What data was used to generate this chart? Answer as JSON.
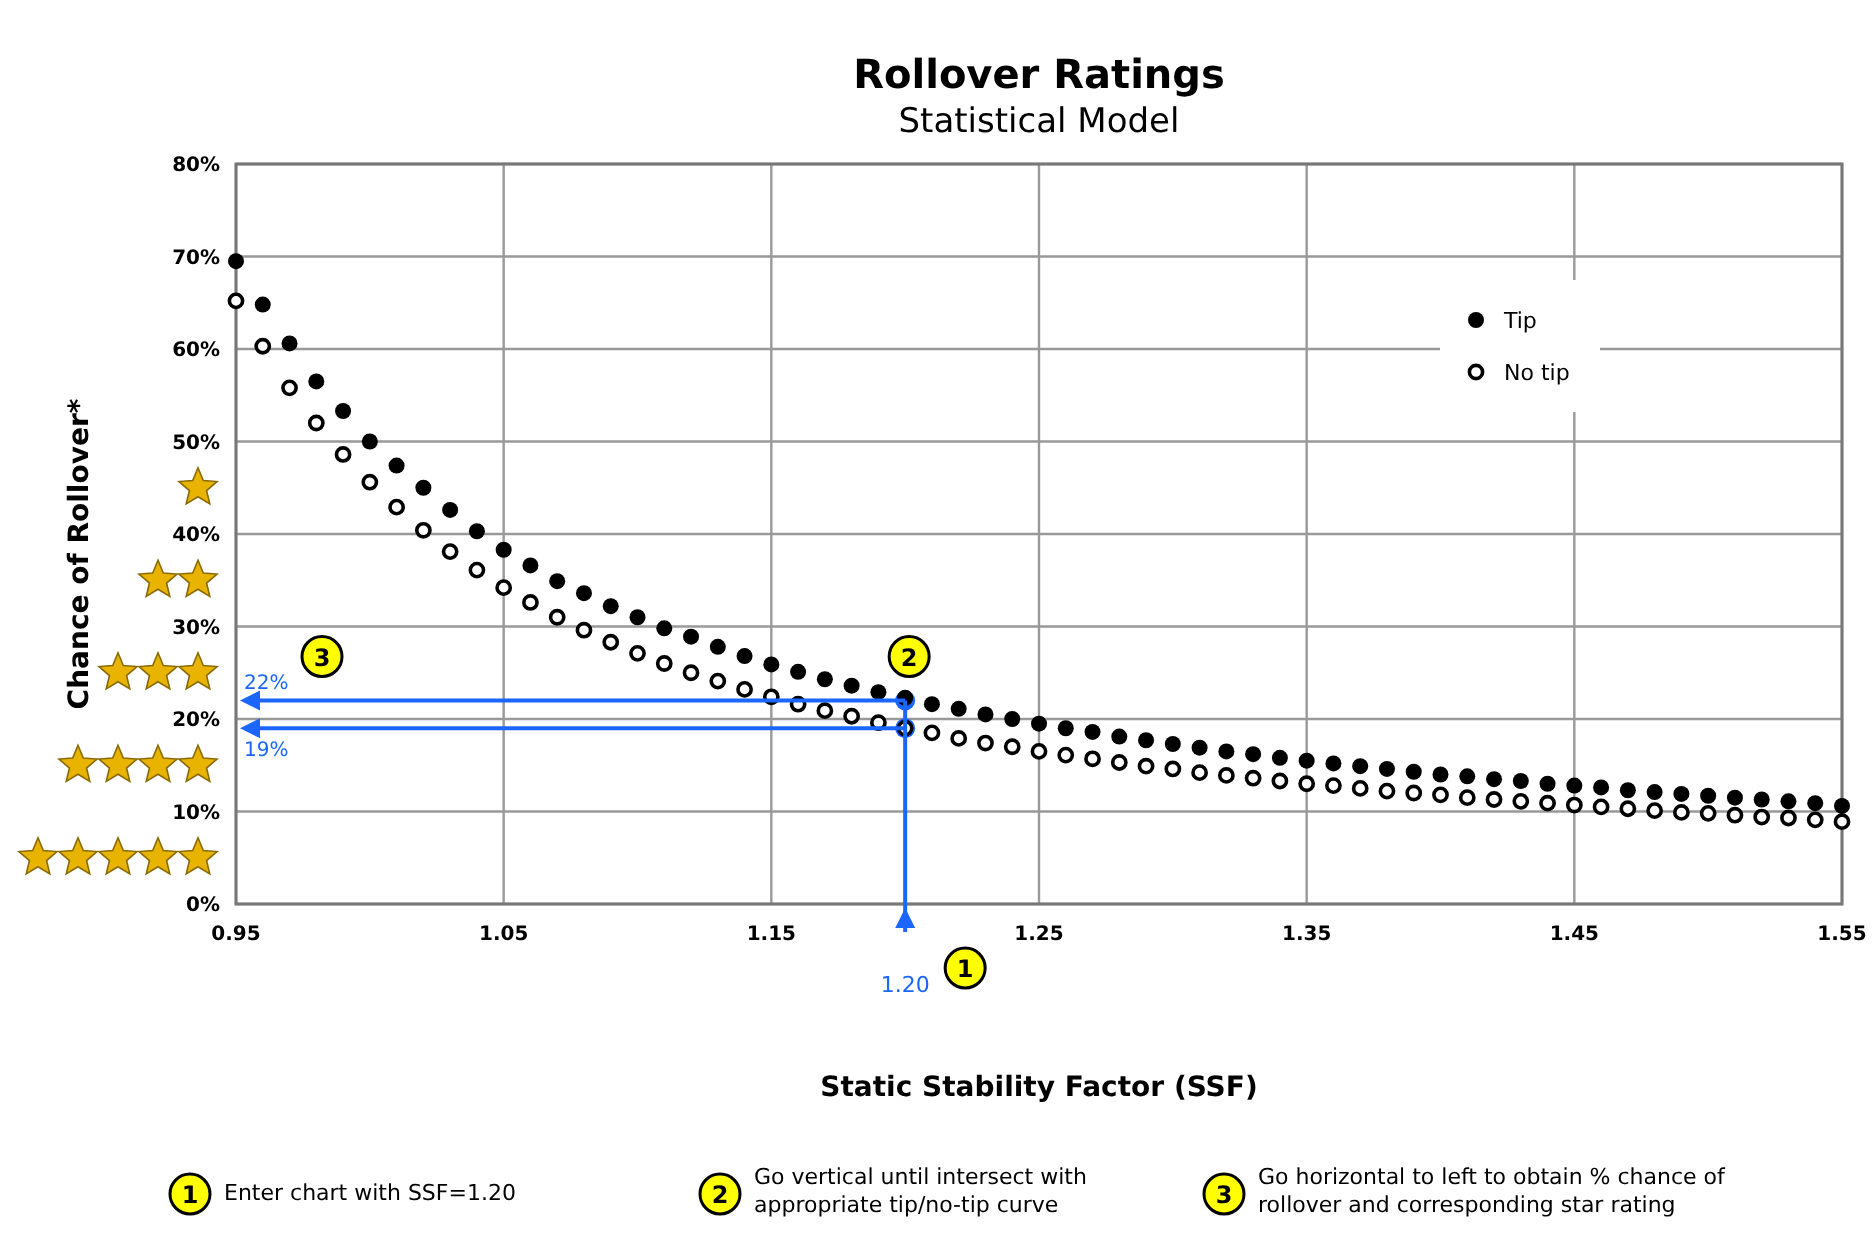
{
  "chart_data": {
    "type": "scatter",
    "title": "Rollover Ratings",
    "subtitle": "Statistical Model",
    "xlabel": "Static Stability Factor (SSF)",
    "ylabel": "Chance of Rollover*",
    "x": [
      0.95,
      0.96,
      0.97,
      0.98,
      0.99,
      1.0,
      1.01,
      1.02,
      1.03,
      1.04,
      1.05,
      1.06,
      1.07,
      1.08,
      1.09,
      1.1,
      1.11,
      1.12,
      1.13,
      1.14,
      1.15,
      1.16,
      1.17,
      1.18,
      1.19,
      1.2,
      1.21,
      1.22,
      1.23,
      1.24,
      1.25,
      1.26,
      1.27,
      1.28,
      1.29,
      1.3,
      1.31,
      1.32,
      1.33,
      1.34,
      1.35,
      1.36,
      1.37,
      1.38,
      1.39,
      1.4,
      1.41,
      1.42,
      1.43,
      1.44,
      1.45,
      1.46,
      1.47,
      1.48,
      1.49,
      1.5,
      1.51,
      1.52,
      1.53,
      1.54,
      1.55
    ],
    "series": [
      {
        "name": "Tip",
        "color": "#000000",
        "values": [
          69.5,
          64.8,
          60.6,
          56.5,
          53.3,
          50.0,
          47.4,
          45.0,
          42.6,
          40.3,
          38.3,
          36.6,
          34.9,
          33.6,
          32.2,
          31.0,
          29.8,
          28.9,
          27.8,
          26.8,
          25.9,
          25.1,
          24.3,
          23.6,
          22.9,
          22.3,
          21.6,
          21.1,
          20.5,
          20.0,
          19.5,
          19.0,
          18.6,
          18.1,
          17.7,
          17.3,
          16.9,
          16.5,
          16.2,
          15.8,
          15.5,
          15.2,
          14.9,
          14.6,
          14.3,
          14.0,
          13.8,
          13.5,
          13.3,
          13.0,
          12.8,
          12.6,
          12.3,
          12.1,
          11.9,
          11.7,
          11.5,
          11.3,
          11.1,
          10.9,
          10.6
        ]
      },
      {
        "name": "No tip",
        "color": "#000000",
        "values": [
          65.2,
          60.3,
          55.8,
          52.0,
          48.6,
          45.6,
          42.9,
          40.4,
          38.1,
          36.1,
          34.2,
          32.6,
          31.0,
          29.6,
          28.3,
          27.1,
          26.0,
          25.0,
          24.1,
          23.2,
          22.4,
          21.6,
          20.9,
          20.3,
          19.6,
          19.0,
          18.5,
          17.9,
          17.4,
          17.0,
          16.5,
          16.1,
          15.7,
          15.3,
          14.9,
          14.6,
          14.2,
          13.9,
          13.6,
          13.3,
          13.0,
          12.8,
          12.5,
          12.2,
          12.0,
          11.8,
          11.5,
          11.3,
          11.1,
          10.9,
          10.7,
          10.5,
          10.3,
          10.1,
          9.9,
          9.8,
          9.6,
          9.4,
          9.3,
          9.1,
          8.9
        ]
      }
    ],
    "xlim": [
      0.95,
      1.55
    ],
    "xticks": [
      {
        "value": 0.95,
        "label": "0.95"
      },
      {
        "value": 1.05,
        "label": "1.05"
      },
      {
        "value": 1.15,
        "label": "1.15"
      },
      {
        "value": 1.25,
        "label": "1.25"
      },
      {
        "value": 1.35,
        "label": "1.35"
      },
      {
        "value": 1.45,
        "label": "1.45"
      },
      {
        "value": 1.55,
        "label": "1.55"
      }
    ],
    "ylim": [
      0,
      80
    ],
    "yticks": [
      {
        "value": 0,
        "label": "0%"
      },
      {
        "value": 10,
        "label": "10%"
      },
      {
        "value": 20,
        "label": "20%"
      },
      {
        "value": 30,
        "label": "30%"
      },
      {
        "value": 40,
        "label": "40%"
      },
      {
        "value": 50,
        "label": "50%"
      },
      {
        "value": 60,
        "label": "60%"
      },
      {
        "value": 70,
        "label": "70%"
      },
      {
        "value": 80,
        "label": "80%"
      }
    ],
    "grid": true,
    "legend": "top right",
    "marker": "circle",
    "ref_lines": [
      {
        "axis": "x",
        "value": 1.2,
        "label": "1.20",
        "color": "#1a66ff"
      },
      {
        "axis": "y",
        "value": 22,
        "label": "22%",
        "color": "#1a66ff"
      },
      {
        "axis": "y",
        "value": 19,
        "label": "19%",
        "color": "#1a66ff"
      }
    ],
    "annotations": [
      "1",
      "2",
      "3",
      "Enter chart with SSF=1.20",
      "Go vertical until intersect with appropriate tip/no-tip curve",
      "Go horizontal to left to obtain % chance of rollover and corresponding star rating"
    ]
  }
}
